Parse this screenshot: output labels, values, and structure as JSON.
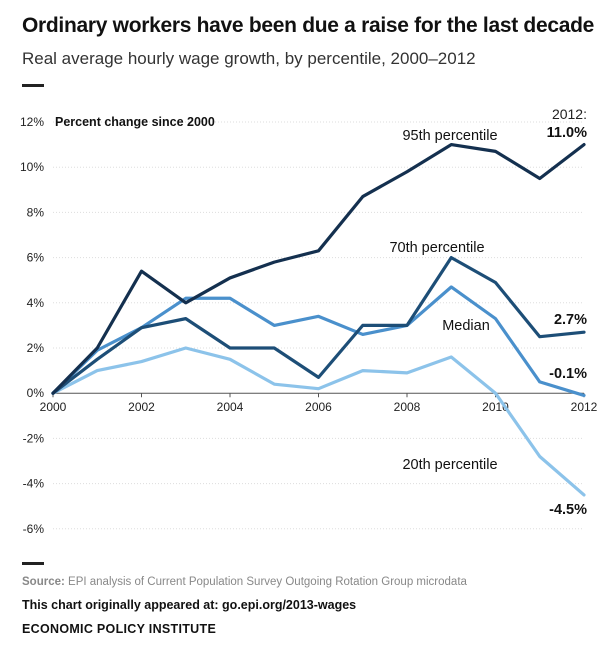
{
  "header": {
    "title": "Ordinary workers have been due a raise for the last decade",
    "subtitle": "Real average hourly wage growth, by percentile, 2000–2012"
  },
  "footer": {
    "source_label": "Source:",
    "source_text": "EPI analysis of Current Population Survey Outgoing Rotation Group microdata",
    "link_text": "This chart originally appeared at: go.epi.org/2013-wages",
    "org": "ECONOMIC POLICY INSTITUTE"
  },
  "chart_data": {
    "type": "line",
    "ylabel": "Percent change since 2000",
    "xlim": [
      2000,
      2012
    ],
    "ylim": [
      -6,
      12
    ],
    "x_ticks": [
      "2000",
      "2002",
      "2004",
      "2006",
      "2008",
      "2010",
      "2012"
    ],
    "y_ticks": [
      "12%",
      "10%",
      "8%",
      "6%",
      "4%",
      "2%",
      "0%",
      "-2%",
      "-4%",
      "-6%"
    ],
    "x": [
      2000,
      2001,
      2002,
      2003,
      2004,
      2005,
      2006,
      2007,
      2008,
      2009,
      2010,
      2011,
      2012
    ],
    "year_note": "2012:",
    "series": [
      {
        "name": "95th percentile",
        "color": "#14304f",
        "values": [
          0,
          2.0,
          5.4,
          4.0,
          5.1,
          5.8,
          6.3,
          8.7,
          9.8,
          11.0,
          10.7,
          9.5,
          11.0
        ],
        "end_label": "11.0%"
      },
      {
        "name": "70th percentile",
        "color": "#1d4e77",
        "values": [
          0,
          1.5,
          2.9,
          3.3,
          2.0,
          2.0,
          0.7,
          3.0,
          3.0,
          6.0,
          4.9,
          2.5,
          2.7
        ],
        "end_label": "2.7%"
      },
      {
        "name": "Median",
        "color": "#4a90cc",
        "values": [
          0,
          1.9,
          2.9,
          4.2,
          4.2,
          3.0,
          3.4,
          2.6,
          3.0,
          4.7,
          3.3,
          0.5,
          -0.1
        ],
        "end_label": "-0.1%"
      },
      {
        "name": "20th percentile",
        "color": "#8cc3ea",
        "values": [
          0,
          1.0,
          1.4,
          2.0,
          1.5,
          0.4,
          0.2,
          1.0,
          0.9,
          1.6,
          0.0,
          -2.8,
          -4.5
        ],
        "end_label": "-4.5%"
      }
    ]
  }
}
